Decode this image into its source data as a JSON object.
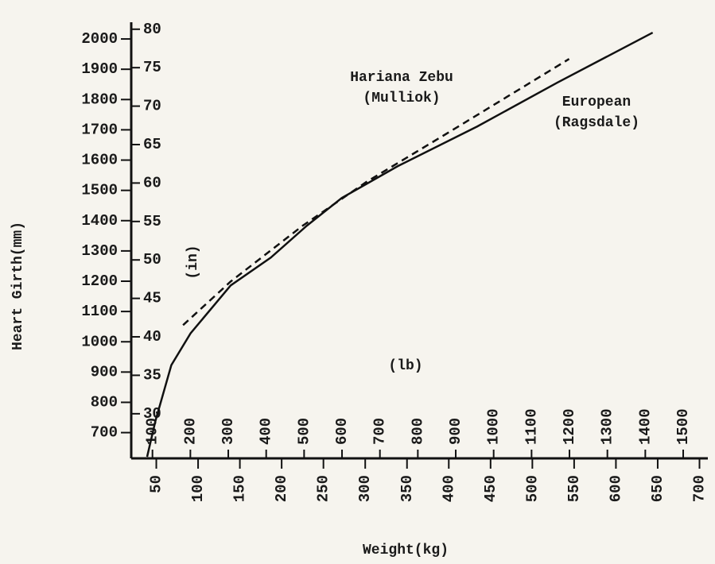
{
  "chart_data": {
    "type": "line",
    "xlabel": "Weight(kg)",
    "ylabel": "Heart Girth(mm)",
    "x2label": "(lb)",
    "y2label": "(in)",
    "xlim": [
      20,
      710
    ],
    "xticks": [
      50,
      100,
      150,
      200,
      250,
      300,
      350,
      400,
      450,
      500,
      550,
      600,
      650,
      700
    ],
    "x2lim": [
      44,
      1565
    ],
    "x2ticks": [
      100,
      200,
      300,
      400,
      500,
      600,
      700,
      800,
      900,
      1000,
      1100,
      1200,
      1300,
      1400,
      1500
    ],
    "ylim": [
      615,
      2050
    ],
    "yticks": [
      700,
      800,
      900,
      1000,
      1100,
      1200,
      1300,
      1400,
      1500,
      1600,
      1700,
      1800,
      1900,
      2000
    ],
    "y2lim": [
      24.2,
      80.7
    ],
    "y2ticks": [
      30,
      35,
      40,
      45,
      50,
      55,
      60,
      65,
      70,
      75,
      80
    ],
    "series": [
      {
        "name": "European (Ragsdale)",
        "color": "#111111",
        "style": "solid",
        "x": [
          39,
          49,
          68,
          91,
          139,
          187,
          230,
          272,
          339,
          434,
          530,
          644
        ],
        "values": [
          620,
          739,
          923,
          1028,
          1186,
          1278,
          1383,
          1475,
          1580,
          1711,
          1856,
          2021
        ]
      },
      {
        "name": "Hariana Zebu (Mulliok)",
        "color": "#111111",
        "style": "dashed",
        "x": [
          82,
          139,
          225,
          301,
          396,
          544
        ],
        "values": [
          1055,
          1199,
          1383,
          1527,
          1685,
          1934
        ]
      }
    ]
  }
}
